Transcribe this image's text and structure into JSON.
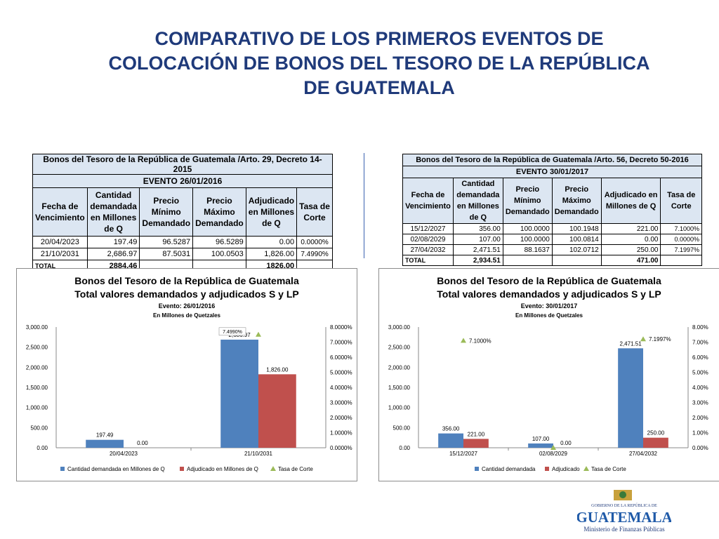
{
  "title": {
    "line1": "COMPARATIVO DE LOS PRIMEROS EVENTOS DE",
    "line2": "COLOCACIÓN DE BONOS DEL TESORO DE LA REPÚBLICA",
    "line3": "DE GUATEMALA"
  },
  "table_left": {
    "title": "Bonos del Tesoro de la República de Guatemala /Arto. 29, Decreto 14-2015",
    "event": "EVENTO 26/01/2016",
    "headers": [
      "Fecha de Vencimiento",
      "Cantidad demandada en Millones de Q",
      "Precio Mínimo Demandado",
      "Precio Máximo Demandado",
      "Adjudicado en Millones de Q",
      "Tasa de Corte"
    ],
    "rows": [
      [
        "20/04/2023",
        "197.49",
        "96.5287",
        "96.5289",
        "0.00",
        "0.0000%"
      ],
      [
        "21/10/2031",
        "2,686.97",
        "87.5031",
        "100.0503",
        "1,826.00",
        "7.4990%"
      ]
    ],
    "total_label": "TOTAL",
    "total_demand": "2884.46",
    "total_adjudicated": "1826.00"
  },
  "table_right": {
    "title": "Bonos del Tesoro de la República de Guatemala /Arto. 56, Decreto 50-2016",
    "event": "EVENTO 30/01/2017",
    "headers": [
      "Fecha de Vencimiento",
      "Cantidad demandada en Millones de Q",
      "Precio Mínimo Demandado",
      "Precio Máximo Demandado",
      "Adjudicado en Millones de Q",
      "Tasa de Corte"
    ],
    "rows": [
      [
        "15/12/2027",
        "356.00",
        "100.0000",
        "100.1948",
        "221.00",
        "7.1000%"
      ],
      [
        "02/08/2029",
        "107.00",
        "100.0000",
        "100.0814",
        "0.00",
        "0.0000%"
      ],
      [
        "27/04/2032",
        "2,471.51",
        "88.1637",
        "102.0712",
        "250.00",
        "7.1997%"
      ]
    ],
    "total_label": "TOTAL",
    "total_demand": "2,934.51",
    "total_adjudicated": "471.00"
  },
  "chart_data": [
    {
      "type": "bar",
      "title": "Bonos del Tesoro de la República de Guatemala",
      "subtitle": "Total valores demandados y adjudicados S y LP",
      "event": "Evento: 26/01/2016",
      "units": "En Millones de Quetzales",
      "categories": [
        "20/04/2023",
        "21/10/2031"
      ],
      "series": [
        {
          "name": "Cantidad demandada en Millones de Q",
          "color": "#4f81bd",
          "values": [
            197.49,
            2686.97
          ],
          "labels": [
            "197.49",
            "2,686.97"
          ]
        },
        {
          "name": "Adjudicado en Millones de Q",
          "color": "#c0504d",
          "values": [
            0.0,
            1826.0
          ],
          "labels": [
            "0.00",
            "1,826.00"
          ]
        }
      ],
      "rate_series": {
        "name": "Tasa de Corte",
        "color": "#9bbb59",
        "values": [
          null,
          7.499
        ],
        "labels": [
          "",
          "7.4990%"
        ]
      },
      "ylim": [
        0,
        3000
      ],
      "y_ticks": [
        "0.00",
        "500.00",
        "1,000.00",
        "1,500.00",
        "2,000.00",
        "2,500.00",
        "3,000.00"
      ],
      "y2lim": [
        0,
        8
      ],
      "y2_ticks": [
        "0.0000%",
        "1.0000%",
        "2.0000%",
        "3.0000%",
        "4.0000%",
        "5.0000%",
        "6.0000%",
        "7.0000%",
        "8.0000%"
      ],
      "legend_position": "bottom"
    },
    {
      "type": "bar",
      "title": "Bonos del Tesoro de la República de Guatemala",
      "subtitle": "Total valores demandados y adjudicados S y LP",
      "event": "Evento: 30/01/2017",
      "units": "En Millones de Quetzales",
      "categories": [
        "15/12/2027",
        "02/08/2029",
        "27/04/2032"
      ],
      "series": [
        {
          "name": "Cantidad demandada",
          "color": "#4f81bd",
          "values": [
            356.0,
            107.0,
            2471.51
          ],
          "labels": [
            "356.00",
            "107.00",
            "2,471.51"
          ]
        },
        {
          "name": "Adjudicado",
          "color": "#c0504d",
          "values": [
            221.0,
            0.0,
            250.0
          ],
          "labels": [
            "221.00",
            "0.00",
            "250.00"
          ]
        }
      ],
      "rate_series": {
        "name": "Tasa de Corte",
        "color": "#9bbb59",
        "values": [
          7.1,
          0.0,
          7.1997
        ],
        "labels": [
          "7.1000%",
          "",
          "7.1997%"
        ]
      },
      "ylim": [
        0,
        3000
      ],
      "y_ticks": [
        "0.00",
        "500.00",
        "1,000.00",
        "1,500.00",
        "2,000.00",
        "2,500.00",
        "3,000.00"
      ],
      "y2lim": [
        0,
        8
      ],
      "y2_ticks": [
        "0.00%",
        "1.00%",
        "2.00%",
        "3.00%",
        "4.00%",
        "5.00%",
        "6.00%",
        "7.00%",
        "8.00%"
      ],
      "legend_position": "bottom"
    }
  ],
  "logo": {
    "top_text": "GOBIERNO DE LA REPÚBLICA DE",
    "name": "GUATEMALA",
    "ministry": "Ministerio de Finanzas Públicas"
  },
  "colors": {
    "title": "#1f3a7a",
    "header_fill": "#dce6f2",
    "blue": "#4f81bd",
    "red": "#c0504d",
    "green": "#9bbb59"
  }
}
